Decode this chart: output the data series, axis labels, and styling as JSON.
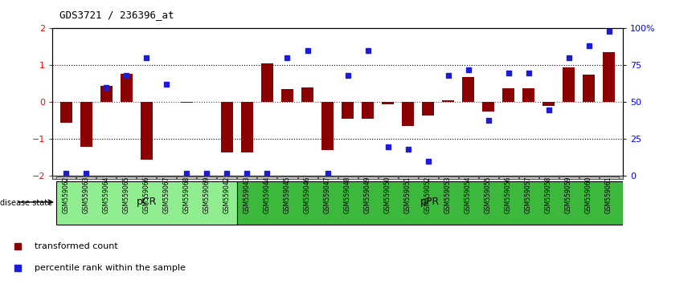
{
  "title": "GDS3721 / 236396_at",
  "samples": [
    "GSM559062",
    "GSM559063",
    "GSM559064",
    "GSM559065",
    "GSM559066",
    "GSM559067",
    "GSM559068",
    "GSM559069",
    "GSM559042",
    "GSM559043",
    "GSM559044",
    "GSM559045",
    "GSM559046",
    "GSM559047",
    "GSM559048",
    "GSM559049",
    "GSM559050",
    "GSM559051",
    "GSM559052",
    "GSM559053",
    "GSM559054",
    "GSM559055",
    "GSM559056",
    "GSM559057",
    "GSM559058",
    "GSM559059",
    "GSM559060",
    "GSM559061"
  ],
  "transformed_count": [
    -0.55,
    -1.2,
    0.45,
    0.78,
    -1.55,
    0.0,
    -0.02,
    0.0,
    -1.35,
    -1.35,
    1.05,
    0.35,
    0.4,
    -1.3,
    -0.45,
    -0.45,
    -0.05,
    -0.65,
    -0.35,
    0.05,
    0.68,
    -0.25,
    0.38,
    0.38,
    -0.1,
    0.95,
    0.75,
    1.35
  ],
  "percentile_rank": [
    2,
    2,
    60,
    68,
    80,
    62,
    2,
    2,
    2,
    2,
    2,
    80,
    85,
    2,
    68,
    85,
    20,
    18,
    10,
    68,
    72,
    38,
    70,
    70,
    45,
    80,
    88,
    98
  ],
  "pCR_count": 9,
  "pPR_count": 19,
  "bar_color": "#8B0000",
  "dot_color": "#1C1CD4",
  "background_color": "#ffffff",
  "plot_bg_color": "#ffffff",
  "ylim": [
    -2,
    2
  ],
  "right_ylim": [
    0,
    100
  ],
  "right_yticks": [
    0,
    25,
    50,
    75,
    100
  ],
  "right_yticklabels": [
    "0",
    "25",
    "50",
    "75",
    "100%"
  ],
  "left_yticks": [
    -2,
    -1,
    0,
    1,
    2
  ],
  "legend_items": [
    "transformed count",
    "percentile rank within the sample"
  ],
  "disease_state_label": "disease state",
  "pCR_label": "pCR",
  "pPR_label": "pPR",
  "pCR_color": "#90EE90",
  "pPR_color": "#3CB93C",
  "tick_label_bg": "#CCCCCC"
}
